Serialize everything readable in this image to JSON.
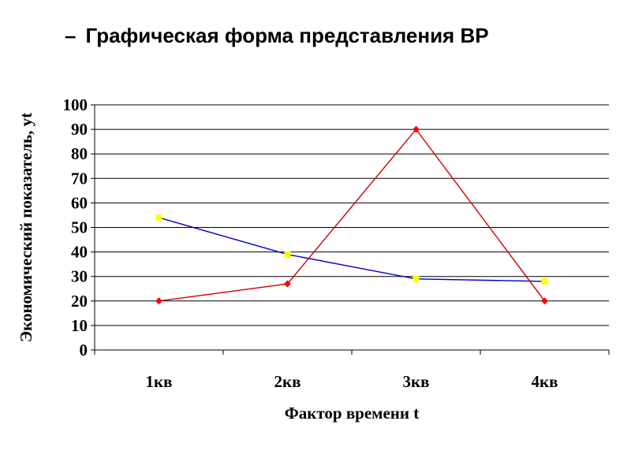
{
  "slide": {
    "dash": "–",
    "title": "Графическая форма представления ВР"
  },
  "chart_data": {
    "type": "line",
    "categories": [
      "1кв",
      "2кв",
      "3кв",
      "4кв"
    ],
    "series": [
      {
        "values": [
          54,
          39,
          29,
          28
        ],
        "color": "#0000cc",
        "marker": "square",
        "marker_color": "#ffff00"
      },
      {
        "values": [
          20,
          27,
          90,
          20
        ],
        "color": "#cc0000",
        "marker": "diamond",
        "marker_color": "#ff0000"
      }
    ],
    "xlabel": "Фактор времени t",
    "ylabel": "Экономический показатель, yt",
    "ylim": [
      0,
      100
    ],
    "yticks": [
      0,
      10,
      20,
      30,
      40,
      50,
      60,
      70,
      80,
      90,
      100
    ],
    "grid": true,
    "legend": "none"
  }
}
